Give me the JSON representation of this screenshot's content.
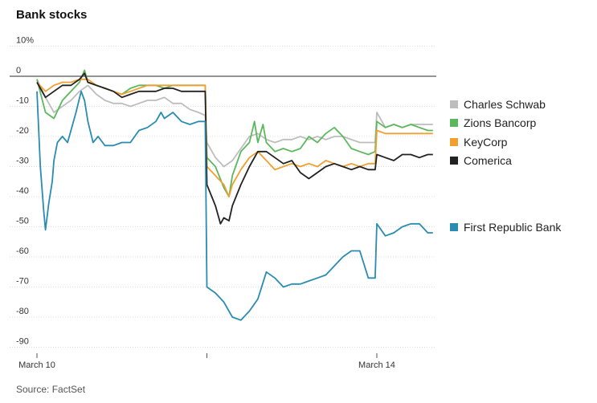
{
  "chart_data": {
    "type": "line",
    "title": "Bank stocks",
    "source": "Source: FactSet",
    "y_ticks": [
      10,
      0,
      -10,
      -20,
      -30,
      -40,
      -50,
      -60,
      -70,
      -80,
      -90
    ],
    "y_tick_labels": [
      "10%",
      "0",
      "-10",
      "-20",
      "-30",
      "-40",
      "-50",
      "-60",
      "-70",
      "-80",
      "-90"
    ],
    "ylim": [
      -92,
      12
    ],
    "x_labels": [
      {
        "label": "March 10",
        "t": 0
      },
      {
        "label": "March 14",
        "t": 2
      }
    ],
    "xlim": [
      0,
      2.35
    ],
    "series": [
      {
        "name": "Charles Schwab",
        "color": "#bdbdbd",
        "points": [
          [
            0,
            -1
          ],
          [
            0.05,
            -7
          ],
          [
            0.1,
            -12
          ],
          [
            0.15,
            -10
          ],
          [
            0.2,
            -8
          ],
          [
            0.25,
            -5
          ],
          [
            0.3,
            -3
          ],
          [
            0.35,
            -6
          ],
          [
            0.4,
            -8
          ],
          [
            0.45,
            -9
          ],
          [
            0.5,
            -9
          ],
          [
            0.55,
            -10
          ],
          [
            0.6,
            -9
          ],
          [
            0.65,
            -8
          ],
          [
            0.7,
            -8
          ],
          [
            0.75,
            -7
          ],
          [
            0.8,
            -9
          ],
          [
            0.85,
            -9
          ],
          [
            0.9,
            -11
          ],
          [
            0.95,
            -12
          ],
          [
            0.99,
            -13
          ],
          [
            1.0,
            -22
          ],
          [
            1.05,
            -27
          ],
          [
            1.1,
            -30
          ],
          [
            1.15,
            -28
          ],
          [
            1.2,
            -24
          ],
          [
            1.25,
            -20
          ],
          [
            1.3,
            -19
          ],
          [
            1.35,
            -21
          ],
          [
            1.4,
            -22
          ],
          [
            1.45,
            -21
          ],
          [
            1.5,
            -21
          ],
          [
            1.55,
            -20
          ],
          [
            1.6,
            -21
          ],
          [
            1.65,
            -20
          ],
          [
            1.7,
            -21
          ],
          [
            1.75,
            -20
          ],
          [
            1.8,
            -20
          ],
          [
            1.85,
            -21
          ],
          [
            1.9,
            -22
          ],
          [
            1.95,
            -22
          ],
          [
            1.99,
            -22
          ],
          [
            2.0,
            -12
          ],
          [
            2.05,
            -17
          ],
          [
            2.1,
            -16
          ],
          [
            2.15,
            -17
          ],
          [
            2.2,
            -16
          ],
          [
            2.25,
            -16
          ],
          [
            2.3,
            -16
          ],
          [
            2.33,
            -16
          ]
        ]
      },
      {
        "name": "Zions Bancorp",
        "color": "#5cb85c",
        "points": [
          [
            0,
            -1
          ],
          [
            0.05,
            -12
          ],
          [
            0.1,
            -14
          ],
          [
            0.15,
            -8
          ],
          [
            0.2,
            -5
          ],
          [
            0.25,
            -2
          ],
          [
            0.28,
            2
          ],
          [
            0.3,
            -2
          ],
          [
            0.35,
            -3
          ],
          [
            0.4,
            -4
          ],
          [
            0.45,
            -5
          ],
          [
            0.5,
            -6
          ],
          [
            0.55,
            -4
          ],
          [
            0.6,
            -3
          ],
          [
            0.65,
            -3
          ],
          [
            0.7,
            -3
          ],
          [
            0.75,
            -4
          ],
          [
            0.8,
            -3
          ],
          [
            0.85,
            -3
          ],
          [
            0.9,
            -3
          ],
          [
            0.95,
            -3
          ],
          [
            0.99,
            -3
          ],
          [
            1.0,
            -27
          ],
          [
            1.05,
            -30
          ],
          [
            1.1,
            -37
          ],
          [
            1.13,
            -40
          ],
          [
            1.15,
            -33
          ],
          [
            1.2,
            -25
          ],
          [
            1.25,
            -22
          ],
          [
            1.28,
            -15
          ],
          [
            1.3,
            -22
          ],
          [
            1.33,
            -16
          ],
          [
            1.35,
            -22
          ],
          [
            1.4,
            -25
          ],
          [
            1.45,
            -24
          ],
          [
            1.5,
            -25
          ],
          [
            1.55,
            -24
          ],
          [
            1.6,
            -20
          ],
          [
            1.65,
            -22
          ],
          [
            1.7,
            -19
          ],
          [
            1.75,
            -17
          ],
          [
            1.8,
            -20
          ],
          [
            1.85,
            -24
          ],
          [
            1.9,
            -25
          ],
          [
            1.95,
            -26
          ],
          [
            1.99,
            -25
          ],
          [
            2.0,
            -15
          ],
          [
            2.05,
            -17
          ],
          [
            2.1,
            -16
          ],
          [
            2.15,
            -17
          ],
          [
            2.2,
            -16
          ],
          [
            2.25,
            -17
          ],
          [
            2.3,
            -18
          ],
          [
            2.33,
            -18
          ]
        ]
      },
      {
        "name": "KeyCorp",
        "color": "#f0a030",
        "points": [
          [
            0,
            -2
          ],
          [
            0.05,
            -5
          ],
          [
            0.1,
            -3
          ],
          [
            0.15,
            -2
          ],
          [
            0.2,
            -2
          ],
          [
            0.25,
            -1
          ],
          [
            0.3,
            -1
          ],
          [
            0.35,
            -3
          ],
          [
            0.4,
            -4
          ],
          [
            0.45,
            -5
          ],
          [
            0.5,
            -6
          ],
          [
            0.55,
            -5
          ],
          [
            0.6,
            -4
          ],
          [
            0.65,
            -3
          ],
          [
            0.7,
            -3
          ],
          [
            0.75,
            -3
          ],
          [
            0.8,
            -3
          ],
          [
            0.85,
            -3
          ],
          [
            0.9,
            -3
          ],
          [
            0.95,
            -3
          ],
          [
            0.99,
            -3
          ],
          [
            1.0,
            -30
          ],
          [
            1.05,
            -33
          ],
          [
            1.1,
            -36
          ],
          [
            1.13,
            -40
          ],
          [
            1.15,
            -36
          ],
          [
            1.2,
            -31
          ],
          [
            1.25,
            -27
          ],
          [
            1.3,
            -25
          ],
          [
            1.35,
            -28
          ],
          [
            1.4,
            -31
          ],
          [
            1.45,
            -30
          ],
          [
            1.5,
            -29
          ],
          [
            1.55,
            -30
          ],
          [
            1.6,
            -29
          ],
          [
            1.65,
            -30
          ],
          [
            1.7,
            -28
          ],
          [
            1.75,
            -29
          ],
          [
            1.8,
            -30
          ],
          [
            1.85,
            -29
          ],
          [
            1.9,
            -30
          ],
          [
            1.95,
            -29
          ],
          [
            1.99,
            -29
          ],
          [
            2.0,
            -18
          ],
          [
            2.05,
            -19
          ],
          [
            2.1,
            -19
          ],
          [
            2.15,
            -19
          ],
          [
            2.2,
            -19
          ],
          [
            2.25,
            -19
          ],
          [
            2.3,
            -19
          ],
          [
            2.33,
            -19
          ]
        ]
      },
      {
        "name": "Comerica",
        "color": "#222222",
        "points": [
          [
            0,
            -2
          ],
          [
            0.05,
            -7
          ],
          [
            0.1,
            -5
          ],
          [
            0.15,
            -3
          ],
          [
            0.2,
            -3
          ],
          [
            0.25,
            -1
          ],
          [
            0.28,
            1
          ],
          [
            0.3,
            -2
          ],
          [
            0.35,
            -3
          ],
          [
            0.4,
            -4
          ],
          [
            0.45,
            -5
          ],
          [
            0.5,
            -7
          ],
          [
            0.55,
            -6
          ],
          [
            0.6,
            -5
          ],
          [
            0.65,
            -5
          ],
          [
            0.7,
            -5
          ],
          [
            0.75,
            -4
          ],
          [
            0.8,
            -4
          ],
          [
            0.85,
            -5
          ],
          [
            0.9,
            -5
          ],
          [
            0.95,
            -5
          ],
          [
            0.99,
            -5
          ],
          [
            1.0,
            -36
          ],
          [
            1.05,
            -43
          ],
          [
            1.08,
            -49
          ],
          [
            1.1,
            -47
          ],
          [
            1.13,
            -48
          ],
          [
            1.15,
            -43
          ],
          [
            1.2,
            -36
          ],
          [
            1.25,
            -30
          ],
          [
            1.3,
            -25
          ],
          [
            1.35,
            -25
          ],
          [
            1.4,
            -27
          ],
          [
            1.45,
            -29
          ],
          [
            1.5,
            -28
          ],
          [
            1.55,
            -32
          ],
          [
            1.6,
            -34
          ],
          [
            1.65,
            -32
          ],
          [
            1.7,
            -30
          ],
          [
            1.75,
            -29
          ],
          [
            1.8,
            -30
          ],
          [
            1.85,
            -31
          ],
          [
            1.9,
            -30
          ],
          [
            1.95,
            -31
          ],
          [
            1.99,
            -31
          ],
          [
            2.0,
            -26
          ],
          [
            2.05,
            -27
          ],
          [
            2.1,
            -28
          ],
          [
            2.15,
            -26
          ],
          [
            2.2,
            -26
          ],
          [
            2.25,
            -27
          ],
          [
            2.3,
            -26
          ],
          [
            2.33,
            -26
          ]
        ]
      },
      {
        "name": "First Republic Bank",
        "color": "#2a8cb0",
        "points": [
          [
            0,
            -5
          ],
          [
            0.02,
            -30
          ],
          [
            0.04,
            -45
          ],
          [
            0.05,
            -51
          ],
          [
            0.07,
            -42
          ],
          [
            0.09,
            -35
          ],
          [
            0.1,
            -28
          ],
          [
            0.12,
            -22
          ],
          [
            0.15,
            -20
          ],
          [
            0.18,
            -22
          ],
          [
            0.2,
            -18
          ],
          [
            0.23,
            -12
          ],
          [
            0.26,
            -5
          ],
          [
            0.28,
            -8
          ],
          [
            0.3,
            -15
          ],
          [
            0.33,
            -22
          ],
          [
            0.36,
            -20
          ],
          [
            0.4,
            -23
          ],
          [
            0.45,
            -23
          ],
          [
            0.5,
            -22
          ],
          [
            0.55,
            -22
          ],
          [
            0.6,
            -18
          ],
          [
            0.65,
            -17
          ],
          [
            0.7,
            -15
          ],
          [
            0.73,
            -12
          ],
          [
            0.75,
            -14
          ],
          [
            0.8,
            -12
          ],
          [
            0.85,
            -15
          ],
          [
            0.9,
            -16
          ],
          [
            0.95,
            -15
          ],
          [
            0.99,
            -15
          ],
          [
            1.0,
            -70
          ],
          [
            1.05,
            -72
          ],
          [
            1.1,
            -75
          ],
          [
            1.15,
            -80
          ],
          [
            1.2,
            -81
          ],
          [
            1.25,
            -78
          ],
          [
            1.3,
            -74
          ],
          [
            1.35,
            -65
          ],
          [
            1.4,
            -67
          ],
          [
            1.45,
            -70
          ],
          [
            1.5,
            -69
          ],
          [
            1.55,
            -69
          ],
          [
            1.6,
            -68
          ],
          [
            1.65,
            -67
          ],
          [
            1.7,
            -66
          ],
          [
            1.75,
            -63
          ],
          [
            1.8,
            -60
          ],
          [
            1.85,
            -58
          ],
          [
            1.9,
            -58
          ],
          [
            1.95,
            -67
          ],
          [
            1.99,
            -67
          ],
          [
            2.0,
            -49
          ],
          [
            2.05,
            -53
          ],
          [
            2.1,
            -52
          ],
          [
            2.15,
            -50
          ],
          [
            2.2,
            -49
          ],
          [
            2.25,
            -49
          ],
          [
            2.3,
            -52
          ],
          [
            2.33,
            -52
          ]
        ]
      }
    ],
    "legend": [
      {
        "name": "Charles Schwab",
        "color": "#bdbdbd"
      },
      {
        "name": "Zions Bancorp",
        "color": "#5cb85c"
      },
      {
        "name": "KeyCorp",
        "color": "#f0a030"
      },
      {
        "name": "Comerica",
        "color": "#222222"
      },
      {
        "name": "First Republic Bank",
        "color": "#2a8cb0"
      }
    ],
    "grid": true,
    "legend_placement": "right"
  }
}
